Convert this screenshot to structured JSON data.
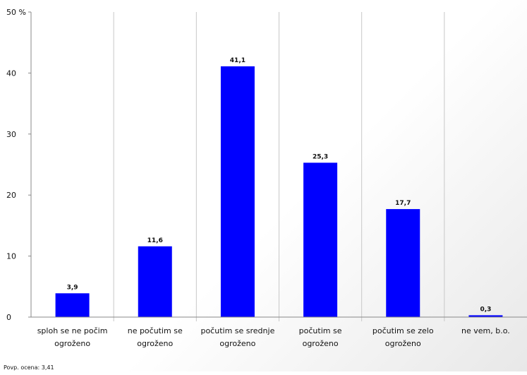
{
  "chart_data": {
    "type": "bar",
    "categories": [
      [
        "sploh se ne počim",
        "ogroženo"
      ],
      [
        "ne počutim se",
        "ogroženo"
      ],
      [
        "počutim se srednje",
        "ogroženo"
      ],
      [
        "počutim se",
        "ogroženo"
      ],
      [
        "počutim se zelo",
        "ogroženo"
      ],
      [
        "ne vem, b.o."
      ]
    ],
    "values": [
      3.9,
      11.6,
      41.1,
      25.3,
      17.7,
      0.3
    ],
    "data_labels": [
      "3,9",
      "11,6",
      "41,1",
      "25,3",
      "17,7",
      "0,3"
    ],
    "y_ticks": [
      {
        "value": 0,
        "label": "0"
      },
      {
        "value": 10,
        "label": "10"
      },
      {
        "value": 20,
        "label": "20"
      },
      {
        "value": 30,
        "label": "30"
      },
      {
        "value": 40,
        "label": "40"
      },
      {
        "value": 50,
        "label": "50 %"
      }
    ],
    "ylim": [
      0,
      50
    ],
    "title": "",
    "xlabel": "",
    "ylabel": "",
    "grid": "vertical category separators",
    "legend": "none",
    "colors": {
      "bar": "#0000ff",
      "grid": "#c8c8c8",
      "axis": "#888888"
    }
  },
  "footnote": "Povp. ocena: 3,41"
}
